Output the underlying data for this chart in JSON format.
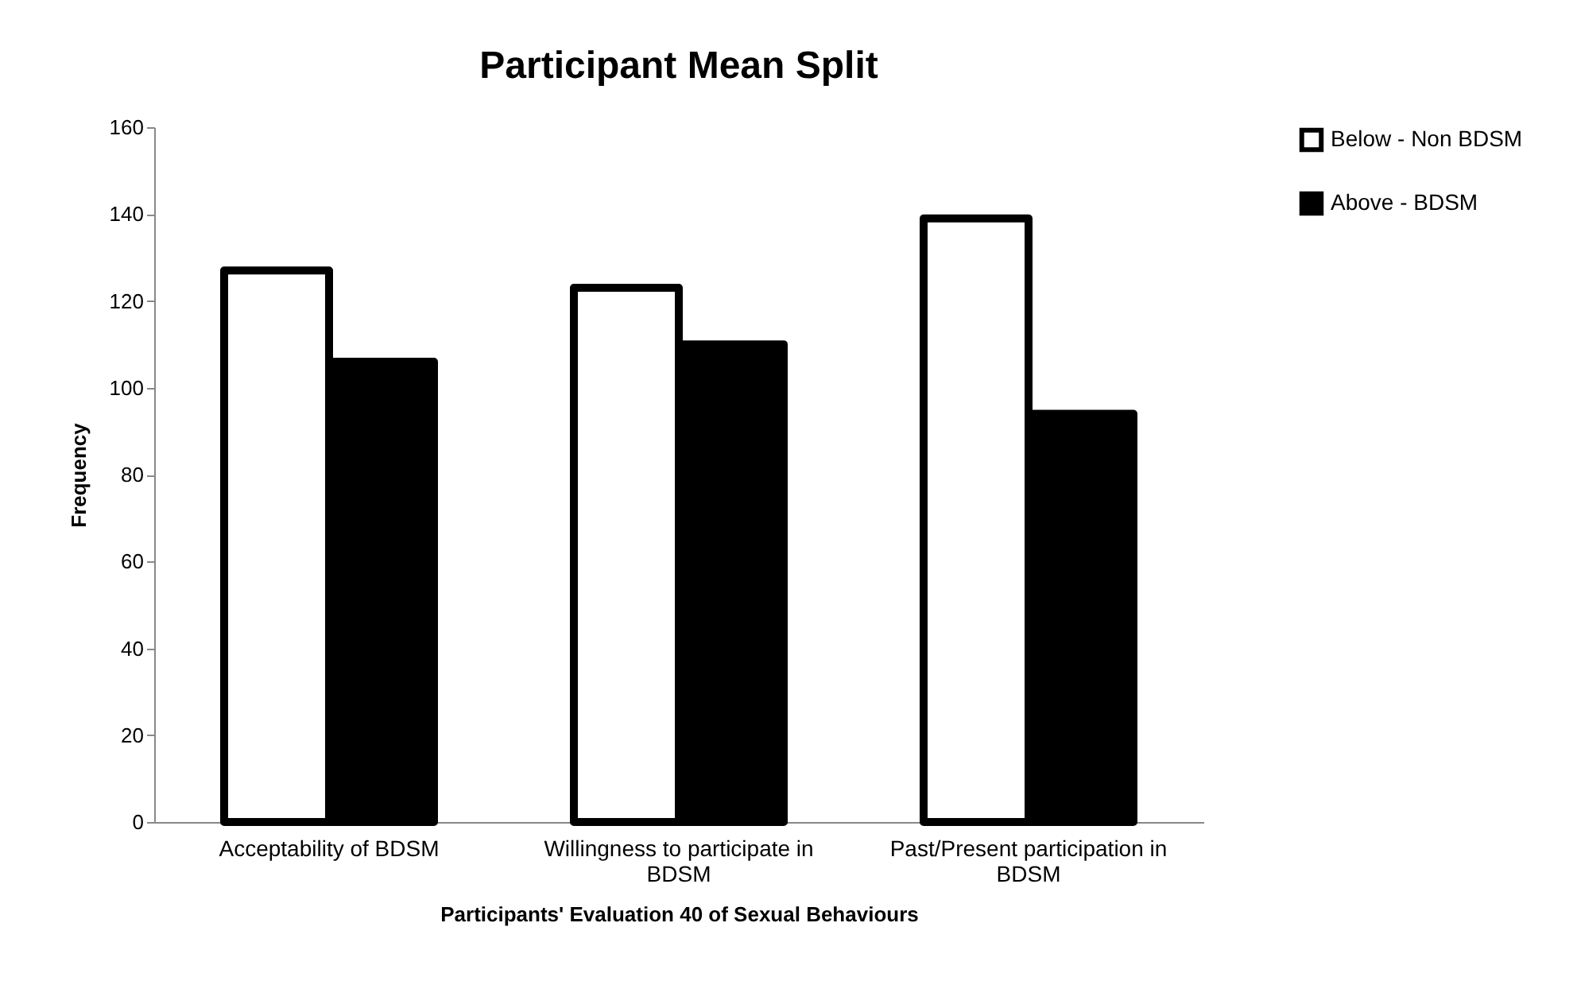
{
  "chart_data": {
    "type": "bar",
    "title": "Participant Mean Split",
    "xlabel": "Participants'  Evaluation  40 of Sexual Behaviours",
    "ylabel": "Frequency",
    "categories": [
      "Acceptability of BDSM",
      "Willingness to participate in BDSM",
      "Past/Present participation in BDSM"
    ],
    "series": [
      {
        "name": "Below - Non BDSM",
        "color": "#ffffff",
        "values": [
          127,
          123,
          139
        ]
      },
      {
        "name": "Above - BDSM",
        "color": "#000000",
        "values": [
          106,
          110,
          94
        ]
      }
    ],
    "ylim": [
      0,
      160
    ],
    "yticks": [
      0,
      20,
      40,
      60,
      80,
      100,
      120,
      140,
      160
    ],
    "grid": false,
    "legend": "right"
  }
}
